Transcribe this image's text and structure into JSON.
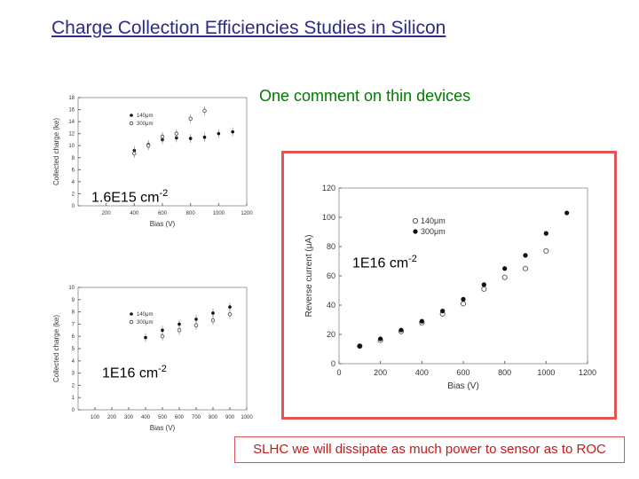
{
  "slide": {
    "title": "Charge Collection Efficiencies Studies in Silicon",
    "comment": "One comment on thin devices",
    "note": "SLHC we will dissipate as much power to sensor as to ROC",
    "labels": {
      "f1": {
        "base": "1.6E15 cm",
        "exp": "-2"
      },
      "f2": {
        "base": "1E16 cm",
        "exp": "-2"
      },
      "f3": {
        "base": "1E16 cm",
        "exp": "-2"
      }
    }
  },
  "colors": {
    "title": "#2b2b8c",
    "comment": "#007a00",
    "box": "#e05555",
    "note": "#c01a1a"
  },
  "chart_data": [
    {
      "type": "scatter",
      "xlabel": "Bias (V)",
      "ylabel": "Collected charge (ke)",
      "xlim": [
        0,
        1200
      ],
      "ylim": [
        0,
        18
      ],
      "xticks": [
        200,
        400,
        600,
        800,
        1000,
        1200
      ],
      "yticks": [
        0,
        2,
        4,
        6,
        8,
        10,
        12,
        14,
        16,
        18
      ],
      "series": [
        {
          "name": "140μm",
          "marker": "filled",
          "x": [
            400,
            500,
            600,
            700,
            800,
            900,
            1000,
            1100
          ],
          "y": [
            9.2,
            10.2,
            11,
            11.3,
            11.2,
            11.4,
            12,
            12.3
          ]
        },
        {
          "name": "300μm",
          "marker": "open",
          "x": [
            400,
            500,
            600,
            700,
            800,
            900
          ],
          "y": [
            8.7,
            10,
            11.5,
            12,
            14.5,
            15.8
          ]
        }
      ]
    },
    {
      "type": "scatter",
      "xlabel": "Bias (V)",
      "ylabel": "Reverse current (μA)",
      "xlim": [
        0,
        1200
      ],
      "ylim": [
        0,
        120
      ],
      "xticks": [
        0,
        200,
        400,
        600,
        800,
        1000,
        1200
      ],
      "yticks": [
        0,
        20,
        40,
        60,
        80,
        100,
        120
      ],
      "series": [
        {
          "name": "140μm",
          "marker": "open",
          "x": [
            100,
            200,
            300,
            400,
            500,
            600,
            700,
            800,
            900,
            1000
          ],
          "y": [
            12,
            16,
            22,
            28,
            34,
            41,
            51,
            59,
            65,
            77
          ]
        },
        {
          "name": "300μm",
          "marker": "filled",
          "x": [
            100,
            200,
            300,
            400,
            500,
            600,
            700,
            800,
            900,
            1000,
            1100
          ],
          "y": [
            12,
            17,
            23,
            29,
            36,
            44,
            54,
            65,
            74,
            89,
            103
          ]
        }
      ]
    },
    {
      "type": "scatter",
      "xlabel": "Bias (V)",
      "ylabel": "Collected charge (ke)",
      "xlim": [
        0,
        1000
      ],
      "ylim": [
        0,
        10
      ],
      "xticks": [
        100,
        200,
        300,
        400,
        500,
        600,
        700,
        800,
        900,
        1000
      ],
      "yticks": [
        0,
        1,
        2,
        3,
        4,
        5,
        6,
        7,
        8,
        9,
        10
      ],
      "series": [
        {
          "name": "140μm",
          "marker": "filled",
          "x": [
            400,
            500,
            600,
            700,
            800,
            900
          ],
          "y": [
            5.9,
            6.5,
            7,
            7.4,
            7.9,
            8.4
          ]
        },
        {
          "name": "300μm",
          "marker": "open",
          "x": [
            500,
            600,
            700,
            800,
            900
          ],
          "y": [
            6,
            6.5,
            6.9,
            7.3,
            7.8
          ]
        }
      ]
    }
  ]
}
